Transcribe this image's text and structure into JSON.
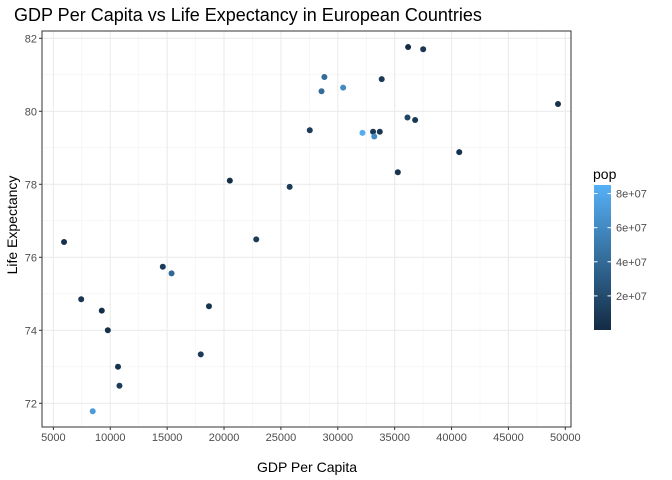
{
  "chart_data": {
    "type": "scatter",
    "title": "GDP Per Capita vs Life Expectancy in European Countries",
    "xlabel": "GDP Per Capita",
    "ylabel": "Life Expectancy",
    "xlim": [
      4000,
      50500
    ],
    "ylim": [
      71.35,
      82.2
    ],
    "x_ticks": [
      5000,
      10000,
      15000,
      20000,
      25000,
      30000,
      35000,
      40000,
      45000,
      50000
    ],
    "y_ticks": [
      72,
      74,
      76,
      78,
      80,
      82
    ],
    "grid": true,
    "color_variable": "pop",
    "legend": {
      "title": "pop",
      "position": "right",
      "color_low": "#132B43",
      "color_high": "#56B1F7",
      "range": [
        0,
        85000000
      ],
      "ticks": [
        {
          "value": 20000000,
          "label": "2e+07"
        },
        {
          "value": 40000000,
          "label": "4e+07"
        },
        {
          "value": 60000000,
          "label": "6e+07"
        },
        {
          "value": 80000000,
          "label": "8e+07"
        }
      ]
    },
    "points": [
      {
        "x": 5937,
        "y": 76.42,
        "pop": 3600000
      },
      {
        "x": 7446,
        "y": 74.85,
        "pop": 7300000
      },
      {
        "x": 8458,
        "y": 71.78,
        "pop": 71000000
      },
      {
        "x": 9254,
        "y": 74.54,
        "pop": 2000000
      },
      {
        "x": 9786,
        "y": 74.0,
        "pop": 3900000
      },
      {
        "x": 10681,
        "y": 73.0,
        "pop": 4500000
      },
      {
        "x": 10808,
        "y": 72.48,
        "pop": 10200000
      },
      {
        "x": 14619,
        "y": 75.74,
        "pop": 10000000
      },
      {
        "x": 15390,
        "y": 75.56,
        "pop": 38500000
      },
      {
        "x": 17956,
        "y": 73.34,
        "pop": 10200000
      },
      {
        "x": 18678,
        "y": 74.66,
        "pop": 5400000
      },
      {
        "x": 20510,
        "y": 78.1,
        "pop": 2000000
      },
      {
        "x": 22833,
        "y": 76.49,
        "pop": 10600000
      },
      {
        "x": 25768,
        "y": 77.93,
        "pop": 10100000
      },
      {
        "x": 27538,
        "y": 79.48,
        "pop": 10700000
      },
      {
        "x": 28570,
        "y": 80.55,
        "pop": 40400000
      },
      {
        "x": 28822,
        "y": 80.94,
        "pop": 40400000
      },
      {
        "x": 30470,
        "y": 80.65,
        "pop": 60800000
      },
      {
        "x": 32170,
        "y": 79.41,
        "pop": 82400000
      },
      {
        "x": 33101,
        "y": 79.44,
        "pop": 8200000
      },
      {
        "x": 33207,
        "y": 79.31,
        "pop": 61000000
      },
      {
        "x": 33693,
        "y": 79.44,
        "pop": 8200000
      },
      {
        "x": 33860,
        "y": 80.88,
        "pop": 9000000
      },
      {
        "x": 35278,
        "y": 78.33,
        "pop": 5300000
      },
      {
        "x": 36126,
        "y": 79.83,
        "pop": 16600000
      },
      {
        "x": 36181,
        "y": 81.76,
        "pop": 300000
      },
      {
        "x": 36798,
        "y": 79.76,
        "pop": 8200000
      },
      {
        "x": 37506,
        "y": 81.7,
        "pop": 7600000
      },
      {
        "x": 40676,
        "y": 78.88,
        "pop": 4100000
      },
      {
        "x": 49357,
        "y": 80.2,
        "pop": 4600000
      }
    ]
  }
}
